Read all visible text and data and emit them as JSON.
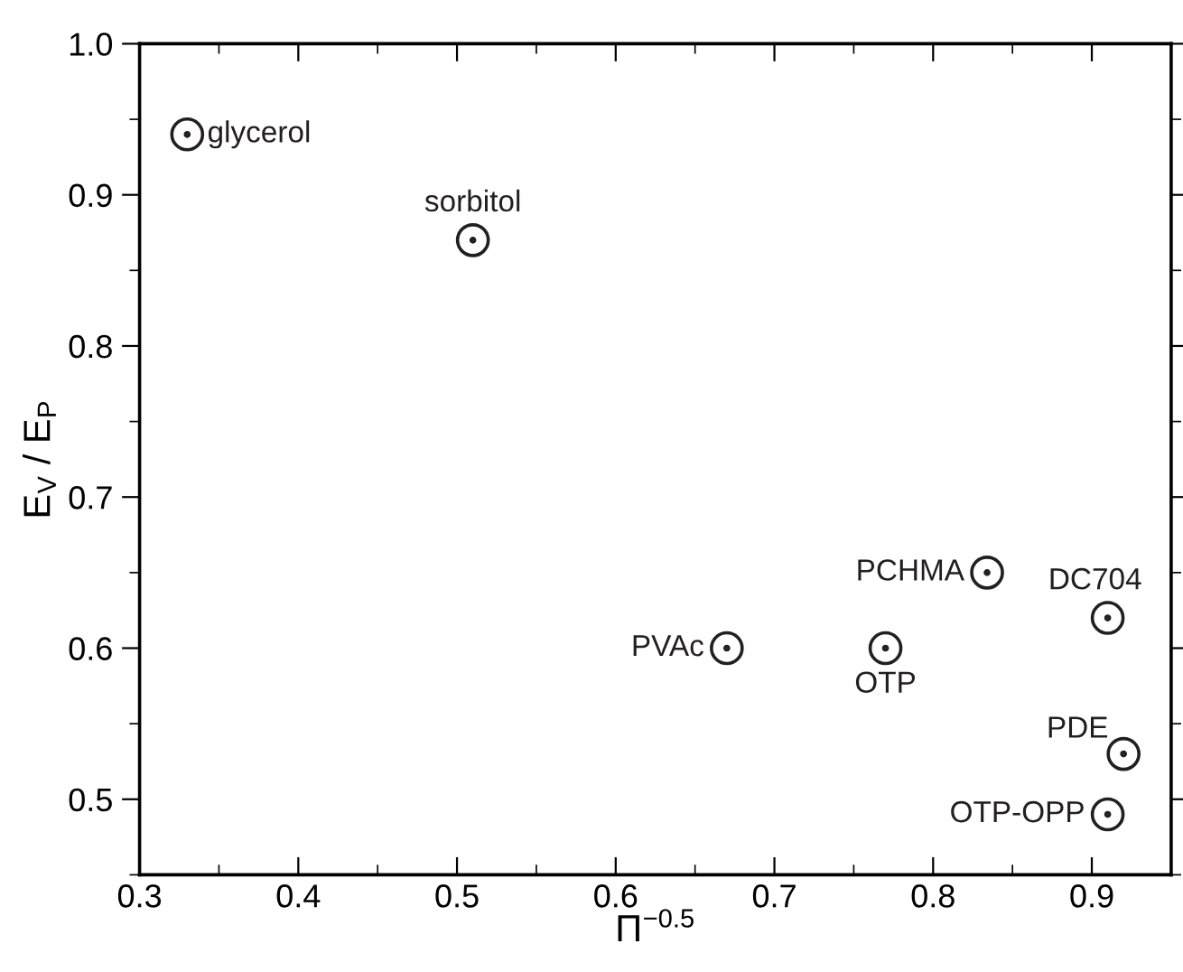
{
  "chart_data": {
    "type": "scatter",
    "xlabel": "Π$^{−0.5}$",
    "ylabel": "E$_{V}$ / E$_{P}$",
    "x": [
      0.33,
      0.51,
      0.67,
      0.77,
      0.834,
      0.91,
      0.92,
      0.91
    ],
    "series": [
      {
        "color": "#231f20",
        "values": [
          0.94,
          0.87,
          0.6,
          0.6,
          0.65,
          0.62,
          0.53,
          0.49
        ]
      }
    ],
    "annotations": [
      {
        "text": "glycerol",
        "x": 0.33,
        "y": 0.94
      },
      {
        "text": "sorbitol",
        "x": 0.51,
        "y": 0.87
      },
      {
        "text": "PVAc",
        "x": 0.67,
        "y": 0.6
      },
      {
        "text": "OTP",
        "x": 0.77,
        "y": 0.6
      },
      {
        "text": "PCHMA",
        "x": 0.834,
        "y": 0.65
      },
      {
        "text": "DC704",
        "x": 0.91,
        "y": 0.62
      },
      {
        "text": "PDE",
        "x": 0.92,
        "y": 0.53
      },
      {
        "text": "OTP-OPP",
        "x": 0.91,
        "y": 0.49
      }
    ],
    "xlim": [
      0.3,
      0.95
    ],
    "ylim": [
      0.45,
      1.0
    ],
    "xticks": [
      0.3,
      0.4,
      0.5,
      0.6,
      0.7,
      0.8,
      0.9
    ],
    "yticks": [
      0.5,
      0.6,
      0.7,
      0.8,
      0.9,
      {
        "value": 1.0,
        "label": "1.0"
      }
    ],
    "marker": "circle",
    "grid": false,
    "legend": false
  }
}
